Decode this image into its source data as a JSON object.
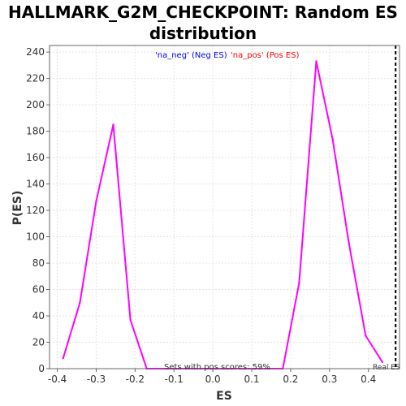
{
  "chart_data": {
    "type": "line",
    "title": "HALLMARK_G2M_CHECKPOINT: Random ES distribution",
    "xlabel": "ES",
    "ylabel": "P(ES)",
    "xlim": [
      -0.42,
      0.48
    ],
    "ylim": [
      0,
      245
    ],
    "xticks": [
      -0.4,
      -0.3,
      -0.2,
      -0.1,
      0.0,
      0.1,
      0.2,
      0.3,
      0.4
    ],
    "xtick_labels": [
      "-0.4",
      "-0.3",
      "-0.2",
      "-0.1",
      "0.0",
      "0.1",
      "0.2",
      "0.3",
      "0.4"
    ],
    "yticks": [
      0,
      20,
      40,
      60,
      80,
      100,
      120,
      140,
      160,
      180,
      200,
      220,
      240
    ],
    "grid": true,
    "legend_position": "top-center",
    "series": [
      {
        "name": "'na_neg' (Neg ES)",
        "color": "#ff00ff",
        "legend_color": "#0000ff",
        "x": [
          -0.385,
          -0.342,
          -0.3,
          -0.256,
          -0.212,
          -0.17
        ],
        "y": [
          8,
          50,
          127,
          185,
          37,
          0
        ]
      },
      {
        "name": "'na_pos' (Pos ES)",
        "color": "#ff00ff",
        "legend_color": "#ff0000",
        "x": [
          -0.17,
          0.18,
          0.222,
          0.266,
          0.308,
          0.35,
          0.393,
          0.436
        ],
        "y": [
          0,
          0,
          65,
          233,
          174,
          95,
          25,
          5
        ]
      }
    ],
    "reference_line": {
      "x": 0.47,
      "label": "Real ES",
      "style": "dashed",
      "color": "#000000"
    },
    "annotation": "Sets with pos scores: 59%"
  }
}
